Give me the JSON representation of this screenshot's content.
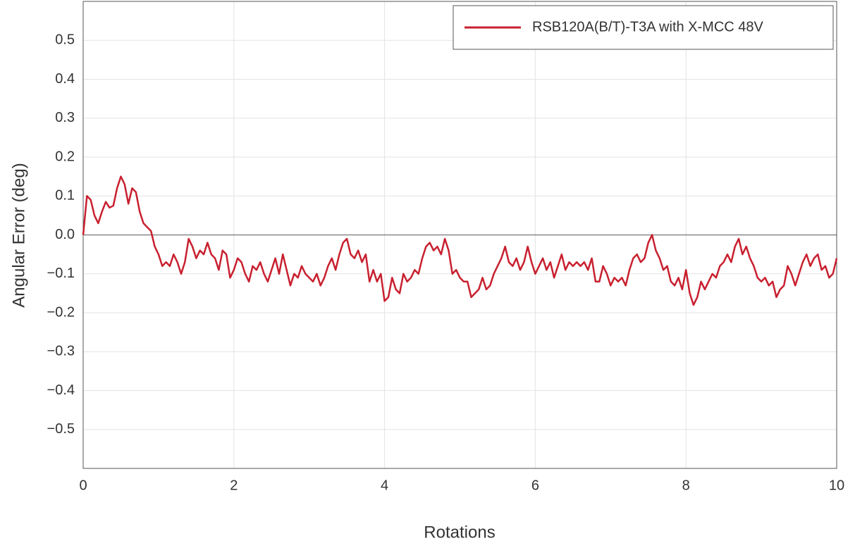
{
  "chart_data": {
    "type": "line",
    "xlabel": "Rotations",
    "ylabel": "Angular Error (deg)",
    "x": [
      0,
      0.05,
      0.1,
      0.15,
      0.2,
      0.25,
      0.3,
      0.35,
      0.4,
      0.45,
      0.5,
      0.55,
      0.6,
      0.65,
      0.7,
      0.75,
      0.8,
      0.85,
      0.9,
      0.95,
      1,
      1.05,
      1.1,
      1.15,
      1.2,
      1.25,
      1.3,
      1.35,
      1.4,
      1.45,
      1.5,
      1.55,
      1.6,
      1.65,
      1.7,
      1.75,
      1.8,
      1.85,
      1.9,
      1.95,
      2,
      2.05,
      2.1,
      2.15,
      2.2,
      2.25,
      2.3,
      2.35,
      2.4,
      2.45,
      2.5,
      2.55,
      2.6,
      2.65,
      2.7,
      2.75,
      2.8,
      2.85,
      2.9,
      2.95,
      3,
      3.05,
      3.1,
      3.15,
      3.2,
      3.25,
      3.3,
      3.35,
      3.4,
      3.45,
      3.5,
      3.55,
      3.6,
      3.65,
      3.7,
      3.75,
      3.8,
      3.85,
      3.9,
      3.95,
      4,
      4.05,
      4.1,
      4.15,
      4.2,
      4.25,
      4.3,
      4.35,
      4.4,
      4.45,
      4.5,
      4.55,
      4.6,
      4.65,
      4.7,
      4.75,
      4.8,
      4.85,
      4.9,
      4.95,
      5,
      5.05,
      5.1,
      5.15,
      5.2,
      5.25,
      5.3,
      5.35,
      5.4,
      5.45,
      5.5,
      5.55,
      5.6,
      5.65,
      5.7,
      5.75,
      5.8,
      5.85,
      5.9,
      5.95,
      6,
      6.05,
      6.1,
      6.15,
      6.2,
      6.25,
      6.3,
      6.35,
      6.4,
      6.45,
      6.5,
      6.55,
      6.6,
      6.65,
      6.7,
      6.75,
      6.8,
      6.85,
      6.9,
      6.95,
      7,
      7.05,
      7.1,
      7.15,
      7.2,
      7.25,
      7.3,
      7.35,
      7.4,
      7.45,
      7.5,
      7.55,
      7.6,
      7.65,
      7.7,
      7.75,
      7.8,
      7.85,
      7.9,
      7.95,
      8,
      8.05,
      8.1,
      8.15,
      8.2,
      8.25,
      8.3,
      8.35,
      8.4,
      8.45,
      8.5,
      8.55,
      8.6,
      8.65,
      8.7,
      8.75,
      8.8,
      8.85,
      8.9,
      8.95,
      9,
      9.05,
      9.1,
      9.15,
      9.2,
      9.25,
      9.3,
      9.35,
      9.4,
      9.45,
      9.5,
      9.55,
      9.6,
      9.65,
      9.7,
      9.75,
      9.8,
      9.85,
      9.9,
      9.95,
      10
    ],
    "series": [
      {
        "name": "RSB120A(B/T)-T3A with X-MCC 48V",
        "color": "#c8202f",
        "values": [
          0,
          0.1,
          0.09,
          0.05,
          0.03,
          0.06,
          0.085,
          0.07,
          0.075,
          0.12,
          0.15,
          0.13,
          0.08,
          0.12,
          0.11,
          0.06,
          0.03,
          0.02,
          0.01,
          -0.03,
          -0.05,
          -0.08,
          -0.07,
          -0.08,
          -0.05,
          -0.07,
          -0.1,
          -0.07,
          -0.01,
          -0.03,
          -0.06,
          -0.04,
          -0.05,
          -0.02,
          -0.05,
          -0.06,
          -0.09,
          -0.04,
          -0.05,
          -0.11,
          -0.09,
          -0.06,
          -0.07,
          -0.1,
          -0.12,
          -0.08,
          -0.09,
          -0.07,
          -0.1,
          -0.12,
          -0.09,
          -0.06,
          -0.1,
          -0.05,
          -0.09,
          -0.13,
          -0.1,
          -0.11,
          -0.08,
          -0.1,
          -0.11,
          -0.12,
          -0.1,
          -0.13,
          -0.11,
          -0.08,
          -0.06,
          -0.09,
          -0.05,
          -0.02,
          -0.01,
          -0.05,
          -0.06,
          -0.04,
          -0.07,
          -0.05,
          -0.12,
          -0.09,
          -0.12,
          -0.1,
          -0.17,
          -0.16,
          -0.11,
          -0.14,
          -0.15,
          -0.1,
          -0.12,
          -0.11,
          -0.09,
          -0.1,
          -0.06,
          -0.03,
          -0.02,
          -0.04,
          -0.03,
          -0.05,
          -0.01,
          -0.04,
          -0.1,
          -0.09,
          -0.11,
          -0.12,
          -0.12,
          -0.16,
          -0.15,
          -0.14,
          -0.11,
          -0.14,
          -0.13,
          -0.1,
          -0.08,
          -0.06,
          -0.03,
          -0.07,
          -0.08,
          -0.06,
          -0.09,
          -0.07,
          -0.03,
          -0.07,
          -0.1,
          -0.08,
          -0.06,
          -0.09,
          -0.07,
          -0.11,
          -0.08,
          -0.05,
          -0.09,
          -0.07,
          -0.08,
          -0.07,
          -0.08,
          -0.07,
          -0.09,
          -0.06,
          -0.12,
          -0.12,
          -0.08,
          -0.1,
          -0.13,
          -0.11,
          -0.12,
          -0.11,
          -0.13,
          -0.09,
          -0.06,
          -0.05,
          -0.07,
          -0.06,
          -0.02,
          0,
          -0.04,
          -0.06,
          -0.09,
          -0.08,
          -0.12,
          -0.13,
          -0.11,
          -0.14,
          -0.09,
          -0.15,
          -0.18,
          -0.16,
          -0.12,
          -0.14,
          -0.12,
          -0.1,
          -0.11,
          -0.08,
          -0.07,
          -0.05,
          -0.07,
          -0.03,
          -0.01,
          -0.05,
          -0.03,
          -0.06,
          -0.08,
          -0.11,
          -0.12,
          -0.11,
          -0.13,
          -0.12,
          -0.16,
          -0.14,
          -0.13,
          -0.08,
          -0.1,
          -0.13,
          -0.1,
          -0.07,
          -0.05,
          -0.08,
          -0.06,
          -0.05,
          -0.09,
          -0.08,
          -0.11,
          -0.1,
          -0.06
        ]
      }
    ],
    "xlim": [
      0,
      10
    ],
    "xticks": [
      0,
      2,
      4,
      6,
      8,
      10
    ],
    "ylim": [
      -0.6,
      0.6
    ],
    "yticks": [
      {
        "value": -0.5,
        "label": "−0.5"
      },
      {
        "value": -0.4,
        "label": "−0.4"
      },
      {
        "value": -0.3,
        "label": "−0.3"
      },
      {
        "value": -0.2,
        "label": "−0.2"
      },
      {
        "value": -0.1,
        "label": "−0.1"
      },
      {
        "value": 0,
        "label": "0.0"
      },
      0.1,
      0.2,
      0.3,
      0.4,
      0.5
    ],
    "grid": true,
    "legend": "upper right"
  }
}
